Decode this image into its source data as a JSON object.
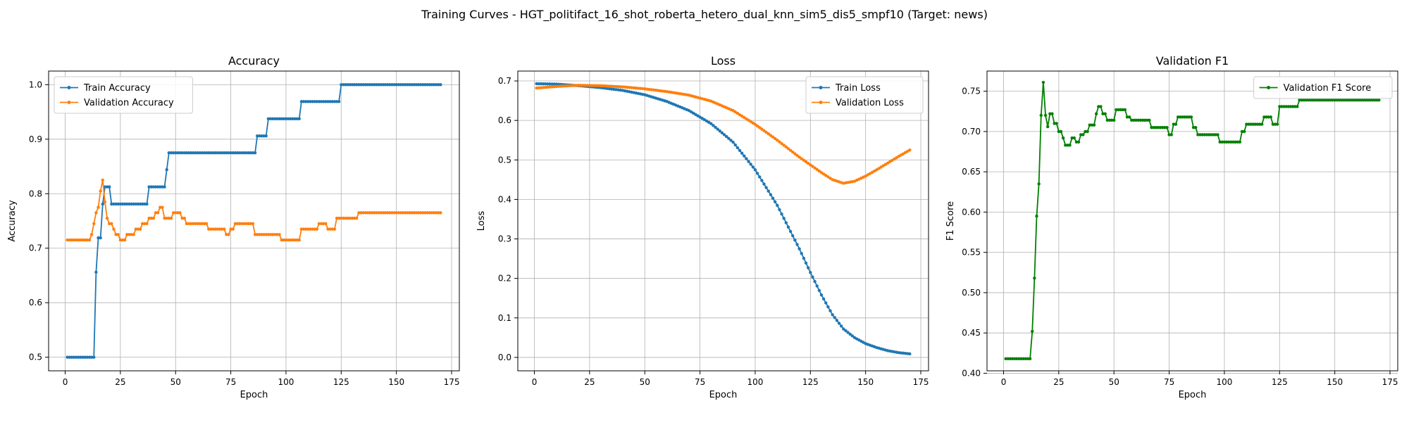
{
  "figure": {
    "suptitle": "Training Curves - HGT_politifact_16_shot_roberta_hetero_dual_knn_sim5_dis5_smpf10 (Target: news)"
  },
  "colors": {
    "blue": "#1f77b4",
    "orange": "#ff7f0e",
    "green": "#008000",
    "grid": "#b0b0b0"
  },
  "chart_data": [
    {
      "type": "line",
      "title": "Accuracy",
      "xlabel": "Epoch",
      "ylabel": "Accuracy",
      "xlim": [
        -7.5,
        178.5
      ],
      "ylim": [
        0.475,
        1.025
      ],
      "xticks": [
        0,
        25,
        50,
        75,
        100,
        125,
        150,
        175
      ],
      "yticks": [
        0.5,
        0.6,
        0.7,
        0.8,
        0.9,
        1.0
      ],
      "ytick_labels": [
        "0.5",
        "0.6",
        "0.7",
        "0.8",
        "0.9",
        "1.0"
      ],
      "grid": true,
      "legend": "upper-left",
      "series": [
        {
          "name": "Train Accuracy",
          "color": "#1f77b4",
          "segments": [
            [
              1,
              13,
              0.5
            ],
            [
              14,
              14,
              0.656
            ],
            [
              15,
              16,
              0.719
            ],
            [
              17,
              17,
              0.781
            ],
            [
              18,
              20,
              0.8125
            ],
            [
              21,
              37,
              0.781
            ],
            [
              38,
              45,
              0.8125
            ],
            [
              46,
              46,
              0.844
            ],
            [
              47,
              86,
              0.875
            ],
            [
              87,
              91,
              0.906
            ],
            [
              92,
              106,
              0.9375
            ],
            [
              107,
              124,
              0.969
            ],
            [
              125,
              170,
              1.0
            ]
          ]
        },
        {
          "name": "Validation Accuracy",
          "color": "#ff7f0e",
          "segments": [
            [
              1,
              11,
              0.715
            ],
            [
              12,
              12,
              0.725
            ],
            [
              13,
              13,
              0.745
            ],
            [
              14,
              14,
              0.765
            ],
            [
              15,
              15,
              0.775
            ],
            [
              16,
              16,
              0.805
            ],
            [
              17,
              17,
              0.825
            ],
            [
              18,
              18,
              0.785
            ],
            [
              19,
              19,
              0.755
            ],
            [
              20,
              21,
              0.745
            ],
            [
              22,
              22,
              0.735
            ],
            [
              23,
              24,
              0.725
            ],
            [
              25,
              27,
              0.715
            ],
            [
              28,
              31,
              0.725
            ],
            [
              32,
              34,
              0.735
            ],
            [
              35,
              37,
              0.745
            ],
            [
              38,
              40,
              0.755
            ],
            [
              41,
              42,
              0.765
            ],
            [
              43,
              44,
              0.775
            ],
            [
              45,
              48,
              0.755
            ],
            [
              49,
              52,
              0.765
            ],
            [
              53,
              54,
              0.755
            ],
            [
              55,
              64,
              0.745
            ],
            [
              65,
              72,
              0.735
            ],
            [
              73,
              74,
              0.725
            ],
            [
              75,
              76,
              0.735
            ],
            [
              77,
              85,
              0.745
            ],
            [
              86,
              97,
              0.725
            ],
            [
              98,
              106,
              0.715
            ],
            [
              107,
              114,
              0.735
            ],
            [
              115,
              118,
              0.745
            ],
            [
              119,
              122,
              0.735
            ],
            [
              123,
              132,
              0.755
            ],
            [
              133,
              170,
              0.765
            ]
          ]
        }
      ]
    },
    {
      "type": "line",
      "title": "Loss",
      "xlabel": "Epoch",
      "ylabel": "Loss",
      "xlim": [
        -7.5,
        178.5
      ],
      "ylim": [
        -0.034,
        0.725
      ],
      "xticks": [
        0,
        25,
        50,
        75,
        100,
        125,
        150,
        175
      ],
      "yticks": [
        0.0,
        0.1,
        0.2,
        0.3,
        0.4,
        0.5,
        0.6,
        0.7
      ],
      "ytick_labels": [
        "0.0",
        "0.1",
        "0.2",
        "0.3",
        "0.4",
        "0.5",
        "0.6",
        "0.7"
      ],
      "grid": true,
      "legend": "upper-right",
      "series": [
        {
          "name": "Train Loss",
          "color": "#1f77b4",
          "keypoints": [
            [
              1,
              0.693
            ],
            [
              10,
              0.692
            ],
            [
              20,
              0.688
            ],
            [
              30,
              0.683
            ],
            [
              40,
              0.676
            ],
            [
              50,
              0.665
            ],
            [
              60,
              0.648
            ],
            [
              70,
              0.625
            ],
            [
              80,
              0.592
            ],
            [
              90,
              0.545
            ],
            [
              100,
              0.475
            ],
            [
              110,
              0.385
            ],
            [
              120,
              0.275
            ],
            [
              125,
              0.215
            ],
            [
              130,
              0.158
            ],
            [
              135,
              0.108
            ],
            [
              140,
              0.072
            ],
            [
              145,
              0.05
            ],
            [
              150,
              0.035
            ],
            [
              155,
              0.025
            ],
            [
              160,
              0.017
            ],
            [
              165,
              0.012
            ],
            [
              170,
              0.009
            ]
          ]
        },
        {
          "name": "Validation Loss",
          "color": "#ff7f0e",
          "keypoints": [
            [
              1,
              0.682
            ],
            [
              10,
              0.686
            ],
            [
              20,
              0.689
            ],
            [
              30,
              0.688
            ],
            [
              40,
              0.685
            ],
            [
              50,
              0.68
            ],
            [
              60,
              0.673
            ],
            [
              70,
              0.664
            ],
            [
              80,
              0.649
            ],
            [
              90,
              0.625
            ],
            [
              100,
              0.59
            ],
            [
              110,
              0.55
            ],
            [
              120,
              0.507
            ],
            [
              130,
              0.468
            ],
            [
              135,
              0.45
            ],
            [
              140,
              0.441
            ],
            [
              145,
              0.446
            ],
            [
              150,
              0.459
            ],
            [
              155,
              0.475
            ],
            [
              160,
              0.492
            ],
            [
              165,
              0.509
            ],
            [
              170,
              0.525
            ]
          ]
        }
      ]
    },
    {
      "type": "line",
      "title": "Validation F1",
      "xlabel": "Epoch",
      "ylabel": "F1 Score",
      "xlim": [
        -7.5,
        178.5
      ],
      "ylim": [
        0.403,
        0.775
      ],
      "xticks": [
        0,
        25,
        50,
        75,
        100,
        125,
        150,
        175
      ],
      "yticks": [
        0.4,
        0.45,
        0.5,
        0.55,
        0.6,
        0.65,
        0.7,
        0.75
      ],
      "ytick_labels": [
        "0.40",
        "0.45",
        "0.50",
        "0.55",
        "0.60",
        "0.65",
        "0.70",
        "0.75"
      ],
      "grid": true,
      "legend": "upper-right",
      "series": [
        {
          "name": "Validation F1 Score",
          "color": "#008000",
          "segments": [
            [
              1,
              12,
              0.418
            ],
            [
              13,
              13,
              0.452
            ],
            [
              14,
              14,
              0.518
            ],
            [
              15,
              15,
              0.595
            ],
            [
              16,
              16,
              0.635
            ],
            [
              17,
              17,
              0.72
            ],
            [
              18,
              18,
              0.761
            ],
            [
              19,
              19,
              0.72
            ],
            [
              20,
              20,
              0.706
            ],
            [
              21,
              22,
              0.722
            ],
            [
              23,
              24,
              0.71
            ],
            [
              25,
              26,
              0.7
            ],
            [
              27,
              27,
              0.692
            ],
            [
              28,
              28,
              0.683
            ],
            [
              29,
              30,
              0.683
            ],
            [
              31,
              32,
              0.692
            ],
            [
              33,
              34,
              0.687
            ],
            [
              35,
              36,
              0.696
            ],
            [
              37,
              38,
              0.7
            ],
            [
              39,
              41,
              0.708
            ],
            [
              42,
              42,
              0.722
            ],
            [
              43,
              44,
              0.731
            ],
            [
              45,
              46,
              0.722
            ],
            [
              47,
              50,
              0.714
            ],
            [
              51,
              55,
              0.727
            ],
            [
              56,
              57,
              0.718
            ],
            [
              58,
              66,
              0.714
            ],
            [
              67,
              74,
              0.705
            ],
            [
              75,
              76,
              0.696
            ],
            [
              77,
              78,
              0.709
            ],
            [
              79,
              85,
              0.718
            ],
            [
              86,
              87,
              0.705
            ],
            [
              88,
              97,
              0.696
            ],
            [
              98,
              107,
              0.687
            ],
            [
              108,
              109,
              0.7
            ],
            [
              110,
              117,
              0.709
            ],
            [
              118,
              121,
              0.718
            ],
            [
              122,
              124,
              0.709
            ],
            [
              125,
              133,
              0.731
            ],
            [
              134,
              170,
              0.739
            ]
          ]
        }
      ]
    }
  ]
}
